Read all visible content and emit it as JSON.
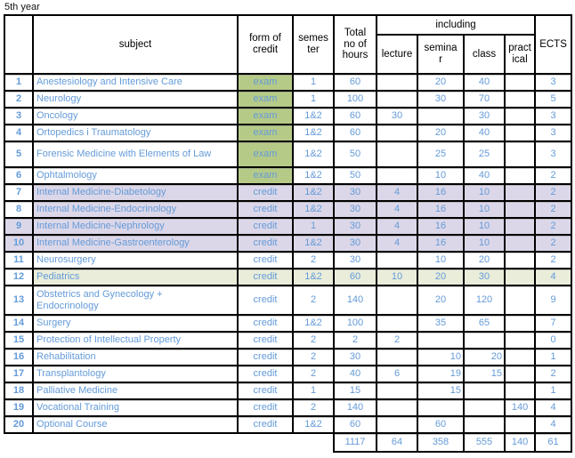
{
  "title": "5th year",
  "colors": {
    "text_blue": "#649bd8",
    "exam_green": "#b6ca88",
    "lavender": "#dcd7e8",
    "light_green": "#e9edda",
    "border_black": "#000000"
  },
  "table": {
    "headers": {
      "subject": "subject",
      "form_of_credit": "form of\ncredit",
      "semester": "semes\nter",
      "total_hours": "Total\nno of\nhours",
      "including": "including",
      "lecture": "lecture",
      "seminar": "semina\nr",
      "class": "class",
      "practical": "pract\nical",
      "ects": "ECTS"
    },
    "rows": [
      {
        "no": "1",
        "subject": "Anestesiology and Intensive Care",
        "credit": "exam",
        "semester": "1",
        "total": "60",
        "lecture": "",
        "seminar": "20",
        "class": "40",
        "practical": "",
        "ects": "3",
        "credit_fill": "green"
      },
      {
        "no": "2",
        "subject": "Neurology",
        "credit": "exam",
        "semester": "1",
        "total": "100",
        "lecture": "",
        "seminar": "30",
        "class": "70",
        "practical": "",
        "ects": "5",
        "credit_fill": "green"
      },
      {
        "no": "3",
        "subject": "Oncology",
        "credit": "exam",
        "semester": "1&2",
        "total": "60",
        "lecture": "30",
        "seminar": "",
        "class": "30",
        "practical": "",
        "ects": "3",
        "credit_fill": "green"
      },
      {
        "no": "4",
        "subject": "Ortopedics i Traumatology",
        "credit": "exam",
        "semester": "1&2",
        "total": "60",
        "lecture": "",
        "seminar": "20",
        "class": "40",
        "practical": "",
        "ects": "3",
        "credit_fill": "green"
      },
      {
        "no": "5",
        "subject": "Forensic Medicine with Elements of Law",
        "credit": "exam",
        "semester": "1&2",
        "total": "50",
        "lecture": "",
        "seminar": "25",
        "class": "25",
        "practical": "",
        "ects": "3",
        "credit_fill": "green",
        "h": 29
      },
      {
        "no": "6",
        "subject": "Ophtalmology",
        "credit": "exam",
        "semester": "1&2",
        "total": "50",
        "lecture": "",
        "seminar": "10",
        "class": "40",
        "practical": "",
        "ects": "2",
        "credit_fill": "green"
      },
      {
        "no": "7",
        "subject": "Internal Medicine-Diabetology",
        "credit": "credit",
        "semester": "1&2",
        "total": "30",
        "lecture": "4",
        "seminar": "16",
        "class": "10",
        "practical": "",
        "ects": "2",
        "fill": "lavender",
        "num_fill": false
      },
      {
        "no": "8",
        "subject": "Internal Medicine-Endocrinology",
        "credit": "credit",
        "semester": "1&2",
        "total": "30",
        "lecture": "4",
        "seminar": "16",
        "class": "10",
        "practical": "",
        "ects": "2",
        "fill": "lavender",
        "num_fill": false
      },
      {
        "no": "9",
        "subject": "Internal Medicine-Nephrology",
        "credit": "credit",
        "semester": "1",
        "total": "30",
        "lecture": "4",
        "seminar": "16",
        "class": "10",
        "practical": "",
        "ects": "2",
        "fill": "lavender",
        "num_fill": true
      },
      {
        "no": "10",
        "subject": "Internal Medicine-Gastroenterology",
        "credit": "credit",
        "semester": "1&2",
        "total": "30",
        "lecture": "4",
        "seminar": "16",
        "class": "10",
        "practical": "",
        "ects": "2",
        "fill": "lavender",
        "num_fill": true
      },
      {
        "no": "11",
        "subject": "Neurosurgery",
        "credit": "credit",
        "semester": "2",
        "total": "30",
        "lecture": "",
        "seminar": "10",
        "class": "20",
        "practical": "",
        "ects": "2"
      },
      {
        "no": "12",
        "subject": "Pediatrics",
        "credit": "credit",
        "semester": "1&2",
        "total": "60",
        "lecture": "10",
        "seminar": "20",
        "class": "30",
        "practical": "",
        "ects": "4",
        "fill": "lightgreen",
        "num_fill": false
      },
      {
        "no": "13",
        "subject": "Obstetrics and Gynecology +\nEndocrinology",
        "credit": "credit",
        "semester": "2",
        "total": "140",
        "lecture": "",
        "seminar": "20",
        "class": "120",
        "practical": "",
        "ects": "9",
        "h": 33
      },
      {
        "no": "14",
        "subject": "Surgery",
        "credit": "credit",
        "semester": "1&2",
        "total": "100",
        "lecture": "",
        "seminar": "35",
        "class": "65",
        "practical": "",
        "ects": "7"
      },
      {
        "no": "15",
        "subject": "Protection of Intellectual Property",
        "credit": "credit",
        "semester": "2",
        "total": "2",
        "lecture": "2",
        "seminar": "",
        "class": "",
        "practical": "",
        "ects": "0"
      },
      {
        "no": "16",
        "subject": "Rehabilitation",
        "credit": "credit",
        "semester": "2",
        "total": "30",
        "lecture": "",
        "seminar": "10",
        "class": "20",
        "practical": "",
        "ects": "1",
        "align_right": [
          "seminar",
          "class"
        ]
      },
      {
        "no": "17",
        "subject": "Transplantology",
        "credit": "credit",
        "semester": "2",
        "total": "40",
        "lecture": "6",
        "seminar": "19",
        "class": "15",
        "practical": "",
        "ects": "2",
        "align_right": [
          "seminar",
          "class"
        ]
      },
      {
        "no": "18",
        "subject": "Palliative Medicine",
        "credit": "credit",
        "semester": "1",
        "total": "15",
        "lecture": "",
        "seminar": "15",
        "class": "",
        "practical": "",
        "ects": "1",
        "align_right": [
          "seminar"
        ]
      },
      {
        "no": "19",
        "subject": "Vocational Training",
        "credit": "credit",
        "semester": "2",
        "total": "140",
        "lecture": "",
        "seminar": "",
        "class": "",
        "practical": "140",
        "ects": "4"
      },
      {
        "no": "20",
        "subject": "Optional Course",
        "credit": "credit",
        "semester": "1&2",
        "total": "60",
        "lecture": "",
        "seminar": "60",
        "class": "",
        "practical": "",
        "ects": "4"
      }
    ],
    "totals": {
      "total": "1117",
      "lecture": "64",
      "seminar": "358",
      "class": "555",
      "practical": "140",
      "ects": "61"
    }
  }
}
